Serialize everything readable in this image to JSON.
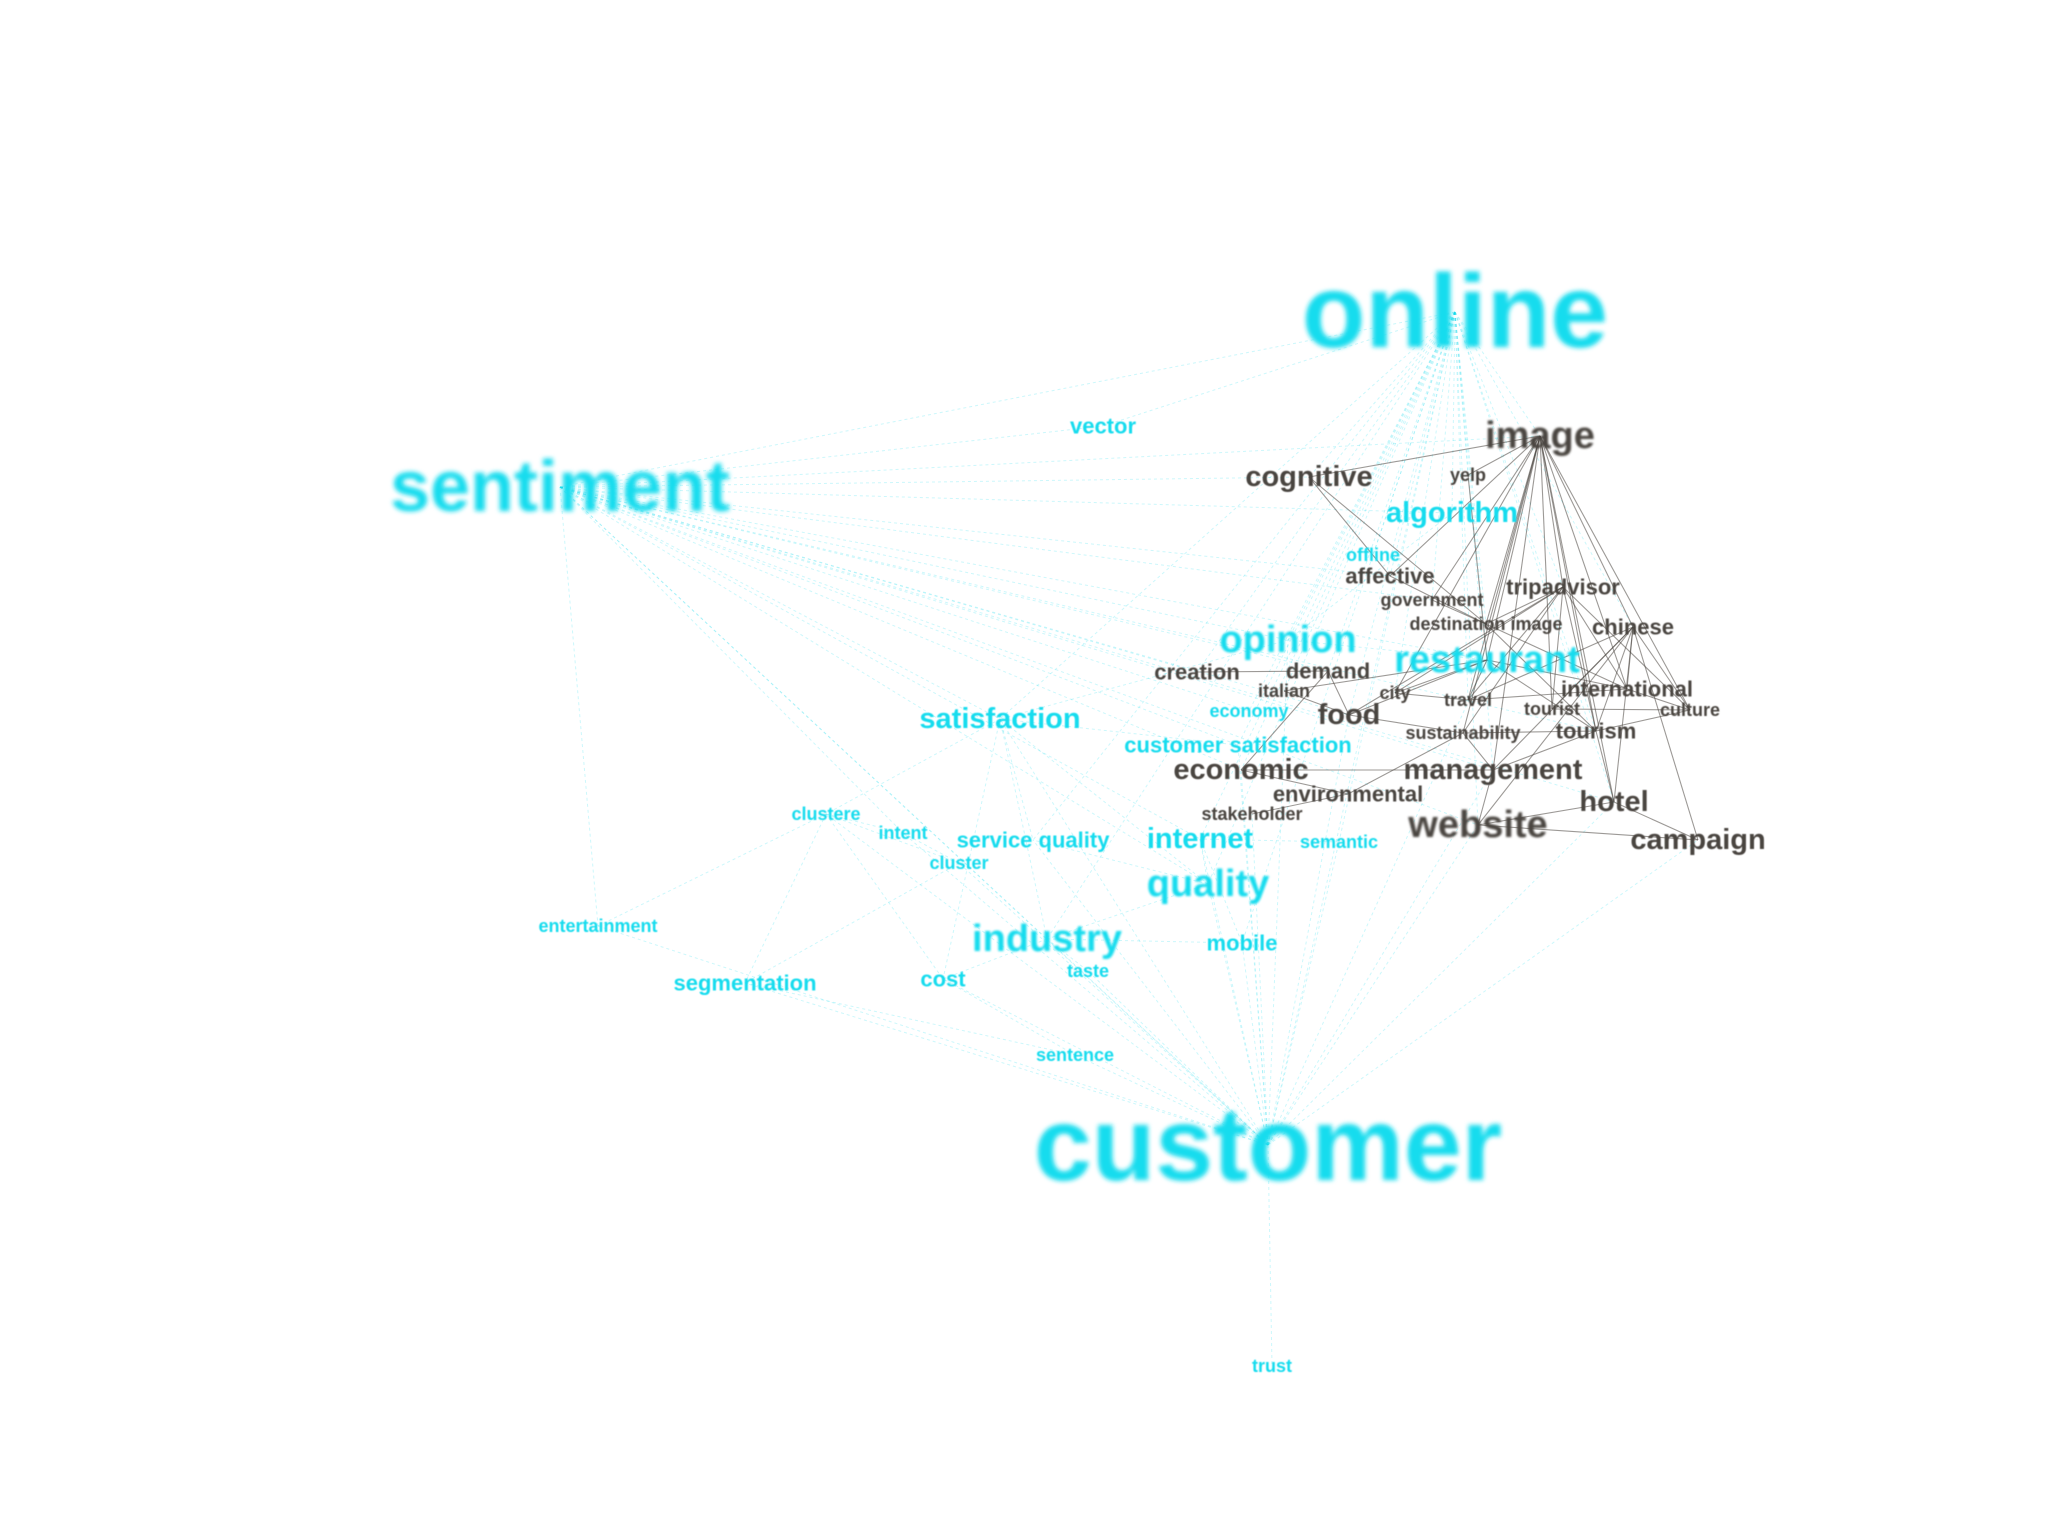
{
  "colors": {
    "cyan_cluster": "#16dcee",
    "dark_cluster": "#4a4540",
    "background": "#ffffff"
  },
  "nodes": [
    {
      "id": "online",
      "label": "online",
      "group": "cyan",
      "tier": "xl"
    },
    {
      "id": "sentiment",
      "label": "sentiment",
      "group": "cyan",
      "tier": "l"
    },
    {
      "id": "customer",
      "label": "customer",
      "group": "cyan",
      "tier": "xl"
    },
    {
      "id": "vector",
      "label": "vector",
      "group": "cyan",
      "tier": "s"
    },
    {
      "id": "image",
      "label": "image",
      "group": "dark",
      "tier": "m"
    },
    {
      "id": "cognitive",
      "label": "cognitive",
      "group": "dark",
      "tier": "sm"
    },
    {
      "id": "yelp",
      "label": "yelp",
      "group": "dark",
      "tier": "xs"
    },
    {
      "id": "algorithm",
      "label": "algorithm",
      "group": "cyan",
      "tier": "sm"
    },
    {
      "id": "offline",
      "label": "offline",
      "group": "cyan",
      "tier": "xs"
    },
    {
      "id": "affective",
      "label": "affective",
      "group": "dark",
      "tier": "s"
    },
    {
      "id": "tripadvisor",
      "label": "tripadvisor",
      "group": "dark",
      "tier": "s"
    },
    {
      "id": "government",
      "label": "government",
      "group": "dark",
      "tier": "xs"
    },
    {
      "id": "destination_image",
      "label": "destination image",
      "group": "dark",
      "tier": "xs"
    },
    {
      "id": "chinese",
      "label": "chinese",
      "group": "dark",
      "tier": "s"
    },
    {
      "id": "opinion",
      "label": "opinion",
      "group": "cyan",
      "tier": "m"
    },
    {
      "id": "restaurant",
      "label": "restaurant",
      "group": "cyan",
      "tier": "m"
    },
    {
      "id": "creation",
      "label": "creation",
      "group": "dark",
      "tier": "s"
    },
    {
      "id": "demand",
      "label": "demand",
      "group": "dark",
      "tier": "s"
    },
    {
      "id": "italian",
      "label": "italian",
      "group": "dark",
      "tier": "xs"
    },
    {
      "id": "city",
      "label": "city",
      "group": "dark",
      "tier": "xs"
    },
    {
      "id": "travel",
      "label": "travel",
      "group": "dark",
      "tier": "xs"
    },
    {
      "id": "international",
      "label": "international",
      "group": "dark",
      "tier": "s"
    },
    {
      "id": "tourist",
      "label": "tourist",
      "group": "dark",
      "tier": "xs"
    },
    {
      "id": "culture",
      "label": "culture",
      "group": "dark",
      "tier": "xs"
    },
    {
      "id": "economy",
      "label": "economy",
      "group": "cyan",
      "tier": "xs"
    },
    {
      "id": "food",
      "label": "food",
      "group": "dark",
      "tier": "sm"
    },
    {
      "id": "satisfaction",
      "label": "satisfaction",
      "group": "cyan",
      "tier": "sm"
    },
    {
      "id": "customer_satisfaction",
      "label": "customer satisfaction",
      "group": "cyan",
      "tier": "s"
    },
    {
      "id": "sustainability",
      "label": "sustainability",
      "group": "dark",
      "tier": "xs"
    },
    {
      "id": "tourism",
      "label": "tourism",
      "group": "dark",
      "tier": "s"
    },
    {
      "id": "economic",
      "label": "economic",
      "group": "dark",
      "tier": "sm"
    },
    {
      "id": "management",
      "label": "management",
      "group": "dark",
      "tier": "sm"
    },
    {
      "id": "environmental",
      "label": "environmental",
      "group": "dark",
      "tier": "s"
    },
    {
      "id": "hotel",
      "label": "hotel",
      "group": "dark",
      "tier": "sm"
    },
    {
      "id": "clustere",
      "label": "clustere",
      "group": "cyan",
      "tier": "xs"
    },
    {
      "id": "stakeholder",
      "label": "stakeholder",
      "group": "dark",
      "tier": "xs"
    },
    {
      "id": "website",
      "label": "website",
      "group": "dark",
      "tier": "m"
    },
    {
      "id": "intent",
      "label": "intent",
      "group": "cyan",
      "tier": "xs"
    },
    {
      "id": "service_quality",
      "label": "service quality",
      "group": "cyan",
      "tier": "s"
    },
    {
      "id": "internet",
      "label": "internet",
      "group": "cyan",
      "tier": "sm"
    },
    {
      "id": "semantic",
      "label": "semantic",
      "group": "cyan",
      "tier": "xs"
    },
    {
      "id": "campaign",
      "label": "campaign",
      "group": "dark",
      "tier": "sm"
    },
    {
      "id": "cluster",
      "label": "cluster",
      "group": "cyan",
      "tier": "xs"
    },
    {
      "id": "quality",
      "label": "quality",
      "group": "cyan",
      "tier": "m"
    },
    {
      "id": "entertainment",
      "label": "entertainment",
      "group": "cyan",
      "tier": "xs"
    },
    {
      "id": "industry",
      "label": "industry",
      "group": "cyan",
      "tier": "m"
    },
    {
      "id": "mobile",
      "label": "mobile",
      "group": "cyan",
      "tier": "s"
    },
    {
      "id": "segmentation",
      "label": "segmentation",
      "group": "cyan",
      "tier": "s"
    },
    {
      "id": "cost",
      "label": "cost",
      "group": "cyan",
      "tier": "s"
    },
    {
      "id": "taste",
      "label": "taste",
      "group": "cyan",
      "tier": "xs"
    },
    {
      "id": "sentence",
      "label": "sentence",
      "group": "cyan",
      "tier": "xs"
    },
    {
      "id": "trust",
      "label": "trust",
      "group": "cyan",
      "tier": "xs"
    }
  ]
}
